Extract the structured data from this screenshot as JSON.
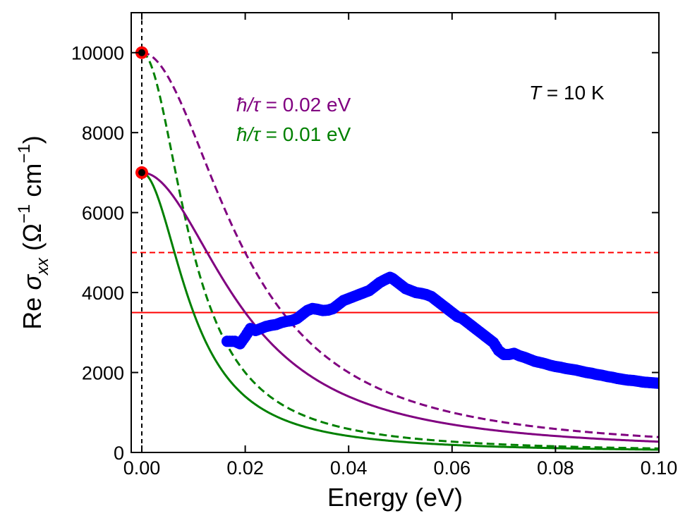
{
  "chart_data": {
    "type": "line",
    "xlabel": "Energy (eV)",
    "ylabel": {
      "prefix": "Re ",
      "sym": "σ",
      "sub": "xx",
      "unit_open": " (Ω",
      "sup1": "−1",
      "unit_mid": " cm",
      "sup2": "−1",
      "unit_close": ")"
    },
    "xlim": [
      0.0,
      0.1
    ],
    "ylim": [
      0,
      11000
    ],
    "x_ticks": [
      0.0,
      0.02,
      0.04,
      0.06,
      0.08,
      0.1
    ],
    "x_tick_labels": [
      "0.00",
      "0.02",
      "0.04",
      "0.06",
      "0.08",
      "0.10"
    ],
    "y_ticks": [
      0,
      2000,
      4000,
      6000,
      8000,
      10000
    ],
    "y_tick_labels": [
      "0",
      "2000",
      "4000",
      "6000",
      "8000",
      "10000"
    ],
    "annotations": {
      "temperature": {
        "sym": "T",
        "rest": " = 10 K"
      },
      "purple": {
        "sym": "ħ/τ",
        "rest": " = 0.02 eV",
        "color": "#800080"
      },
      "green": {
        "sym": "ħ/τ",
        "rest": " = 0.01 eV",
        "color": "#008000"
      }
    },
    "vertical_line": {
      "x": 0.0,
      "style": "dashed",
      "color": "#000000"
    },
    "horizontal_lines": [
      {
        "y": 5000,
        "style": "dashed",
        "color": "#ff0000"
      },
      {
        "y": 3500,
        "style": "solid",
        "color": "#ff0000"
      }
    ],
    "drude_curves": [
      {
        "name": "ħ/τ = 0.02 eV, σ0 = 10000",
        "sigma0": 10000,
        "gamma": 0.02,
        "style": "dashed",
        "color": "#800080"
      },
      {
        "name": "ħ/τ = 0.01 eV, σ0 = 10000",
        "sigma0": 10000,
        "gamma": 0.01,
        "style": "dashed",
        "color": "#008000"
      },
      {
        "name": "ħ/τ = 0.02 eV, σ0 = 7000",
        "sigma0": 7000,
        "gamma": 0.02,
        "style": "solid",
        "color": "#800080"
      },
      {
        "name": "ħ/τ = 0.01 eV, σ0 = 7000",
        "sigma0": 7000,
        "gamma": 0.01,
        "style": "solid",
        "color": "#008000"
      }
    ],
    "dc_points": [
      {
        "x": 0.0,
        "y": 10000
      },
      {
        "x": 0.0,
        "y": 7000
      }
    ],
    "measured_series": {
      "name": "measured",
      "color": "#0000ff",
      "x": [
        0.0165,
        0.018,
        0.019,
        0.02,
        0.021,
        0.022,
        0.023,
        0.024,
        0.025,
        0.026,
        0.027,
        0.028,
        0.029,
        0.03,
        0.031,
        0.032,
        0.033,
        0.034,
        0.035,
        0.036,
        0.037,
        0.038,
        0.039,
        0.04,
        0.041,
        0.042,
        0.043,
        0.044,
        0.045,
        0.046,
        0.047,
        0.048,
        0.0485,
        0.049,
        0.05,
        0.051,
        0.052,
        0.053,
        0.054,
        0.055,
        0.056,
        0.057,
        0.058,
        0.059,
        0.06,
        0.061,
        0.062,
        0.063,
        0.064,
        0.065,
        0.066,
        0.067,
        0.068,
        0.069,
        0.07,
        0.071,
        0.072,
        0.073,
        0.074,
        0.075,
        0.076,
        0.077,
        0.078,
        0.079,
        0.08,
        0.081,
        0.082,
        0.083,
        0.084,
        0.085,
        0.086,
        0.087,
        0.088,
        0.089,
        0.09,
        0.091,
        0.092,
        0.093,
        0.094,
        0.095,
        0.096,
        0.097,
        0.098,
        0.099,
        0.1
      ],
      "y": [
        2780,
        2780,
        2720,
        2900,
        3100,
        3050,
        3100,
        3150,
        3180,
        3200,
        3250,
        3280,
        3300,
        3350,
        3450,
        3550,
        3600,
        3580,
        3550,
        3560,
        3600,
        3700,
        3800,
        3850,
        3900,
        3950,
        4000,
        4050,
        4150,
        4250,
        4320,
        4380,
        4350,
        4300,
        4200,
        4100,
        4050,
        4000,
        3980,
        3950,
        3900,
        3800,
        3700,
        3600,
        3500,
        3400,
        3350,
        3250,
        3150,
        3050,
        2950,
        2850,
        2750,
        2550,
        2450,
        2450,
        2480,
        2420,
        2380,
        2330,
        2280,
        2250,
        2220,
        2180,
        2150,
        2130,
        2100,
        2080,
        2060,
        2030,
        2000,
        1980,
        1950,
        1930,
        1900,
        1880,
        1850,
        1830,
        1810,
        1800,
        1780,
        1760,
        1750,
        1740,
        1730
      ]
    }
  }
}
